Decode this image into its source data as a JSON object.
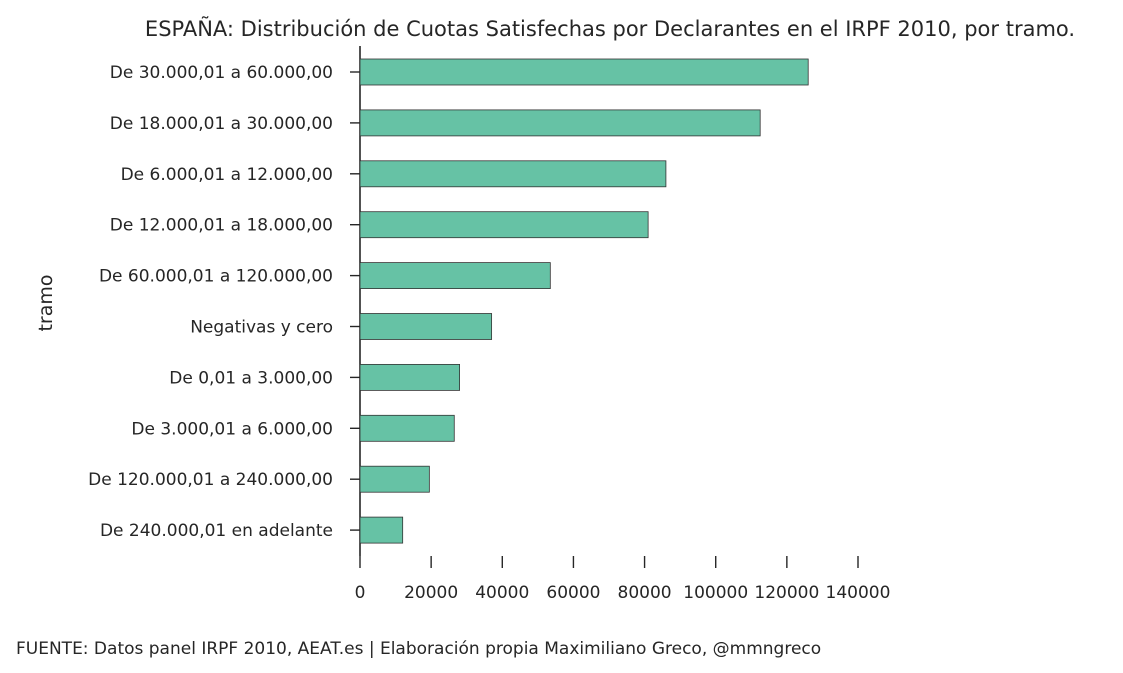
{
  "chart_data": {
    "type": "bar",
    "orientation": "horizontal",
    "title": "ESPAÑA: Distribución de Cuotas Satisfechas por Declarantes en el IRPF 2010, por tramo.",
    "xlabel": "",
    "ylabel": "tramo",
    "categories": [
      "De 30.000,01 a 60.000,00",
      "De 18.000,01 a 30.000,00",
      "De 6.000,01 a 12.000,00",
      "De 12.000,01 a 18.000,00",
      "De 60.000,01 a 120.000,00",
      "Negativas y cero",
      "De 0,01 a 3.000,00",
      "De 3.000,01 a 6.000,00",
      "De 120.000,01 a 240.000,00",
      "De 240.000,01 en adelante"
    ],
    "values": [
      126000,
      112500,
      86000,
      81000,
      53500,
      37000,
      28000,
      26500,
      19500,
      12000
    ],
    "xlim": [
      0,
      140000
    ],
    "xticks": [
      0,
      20000,
      40000,
      60000,
      80000,
      100000,
      120000,
      140000
    ],
    "bar_color": "#66c2a5",
    "grid": false,
    "footer": "FUENTE: Datos panel IRPF 2010, AEAT.es | Elaboración propia Maximiliano Greco, @mmngreco"
  }
}
